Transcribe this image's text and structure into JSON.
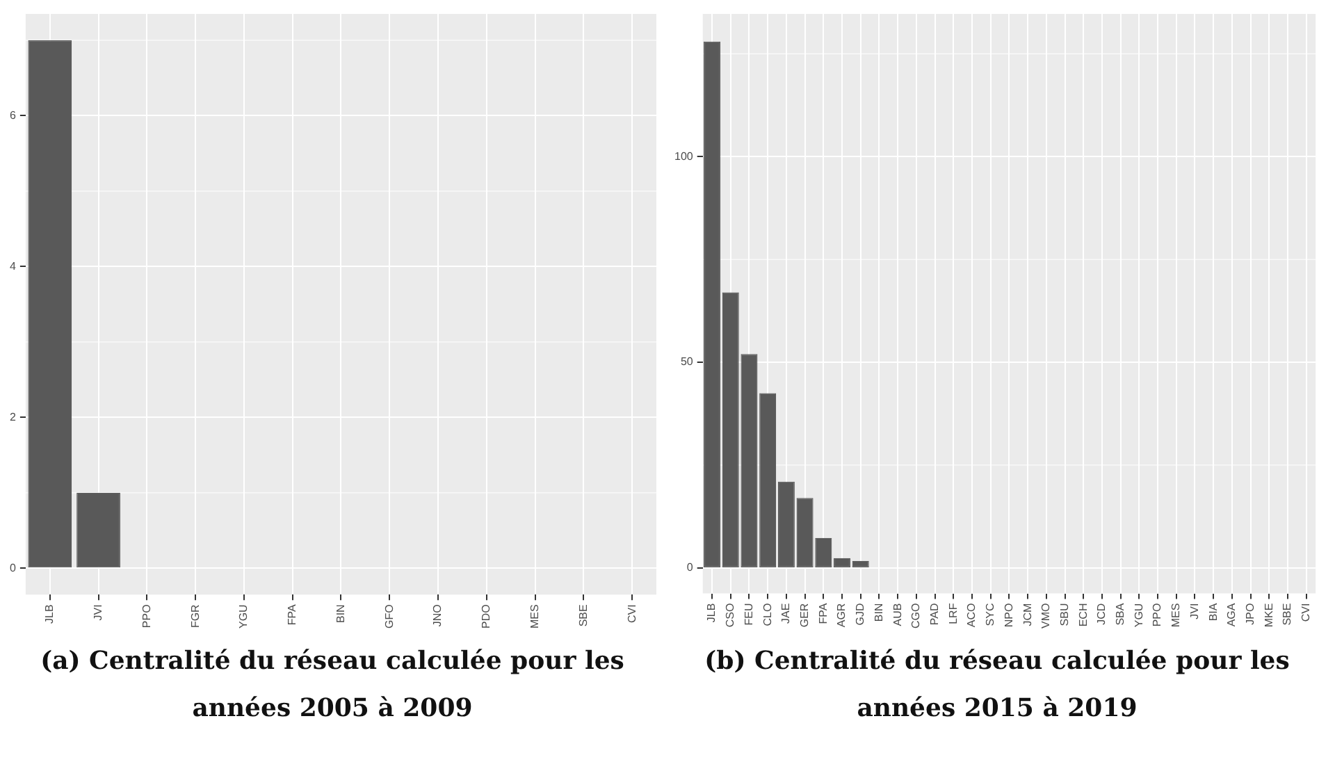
{
  "chart_data": [
    {
      "type": "bar",
      "title": "(a) Centralité du réseau calculée pour les années 2005 à 2009",
      "categories": [
        "JLB",
        "JVI",
        "PPO",
        "FGR",
        "YGU",
        "FPA",
        "BIN",
        "GFO",
        "JNO",
        "PDO",
        "MES",
        "SBE",
        "CVI"
      ],
      "values": [
        7,
        1,
        0,
        0,
        0,
        0,
        0,
        0,
        0,
        0,
        0,
        0,
        0
      ],
      "color": "#595959",
      "ylim": [
        -0.35,
        7.35
      ],
      "yticks": [
        0,
        2,
        4,
        6
      ],
      "grid": true,
      "legend": false
    },
    {
      "type": "bar",
      "title": "(b) Centralité du réseau calculée pour les années 2015 à 2019",
      "categories": [
        "JLB",
        "CSO",
        "FEU",
        "CLO",
        "JAE",
        "GER",
        "FPA",
        "AGR",
        "GJD",
        "BIN",
        "AUB",
        "CGO",
        "PAD",
        "LRF",
        "ACO",
        "SYC",
        "NPO",
        "JCM",
        "VMO",
        "SBU",
        "ECH",
        "JCD",
        "SBA",
        "YGU",
        "PPO",
        "MES",
        "JVI",
        "BIA",
        "AGA",
        "JPO",
        "MKE",
        "SBE",
        "CVI"
      ],
      "values": [
        128,
        67,
        52,
        42.5,
        21,
        17,
        7.3,
        2.4,
        1.7,
        0,
        0,
        0,
        0,
        0,
        0,
        0,
        0,
        0,
        0,
        0,
        0,
        0,
        0,
        0,
        0,
        0,
        0,
        0,
        0,
        0,
        0,
        0,
        0
      ],
      "color": "#595959",
      "ylim": [
        -6.2,
        134.7
      ],
      "yticks": [
        0,
        50,
        100
      ],
      "grid": true,
      "legend": false
    }
  ]
}
